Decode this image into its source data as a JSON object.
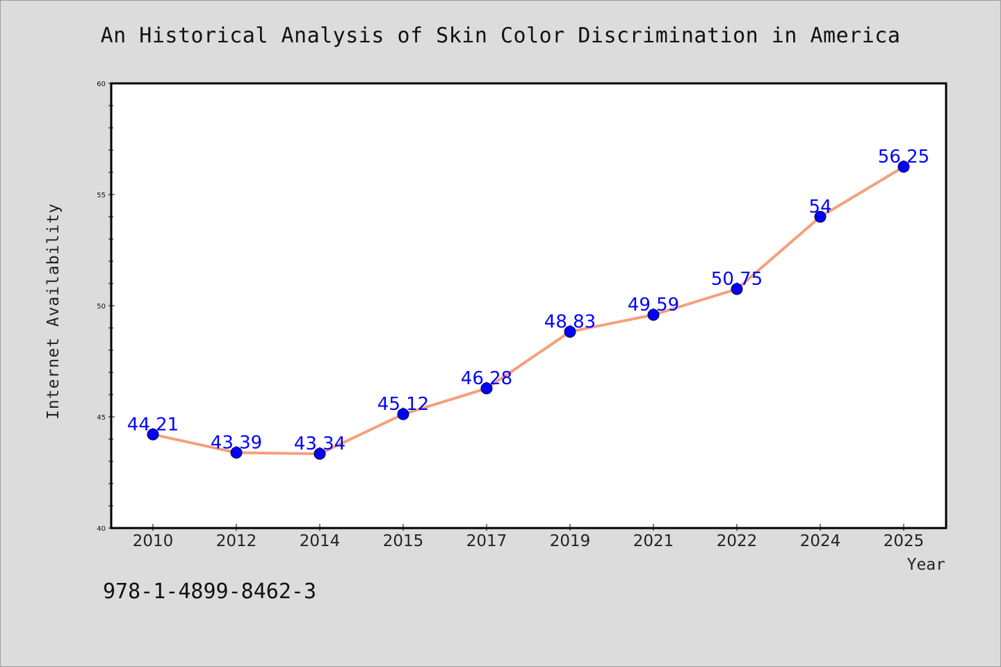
{
  "chart_data": {
    "type": "line",
    "title": "An Historical Analysis of Skin Color Discrimination in America",
    "xlabel": "Year",
    "ylabel": "Internet Availability",
    "categories": [
      "2010",
      "2012",
      "2014",
      "2015",
      "2017",
      "2019",
      "2021",
      "2022",
      "2024",
      "2025"
    ],
    "values": [
      44.21,
      43.39,
      43.34,
      45.12,
      46.28,
      48.83,
      49.59,
      50.75,
      54,
      56.25
    ],
    "data_labels": [
      "44.21",
      "43.39",
      "43.34",
      "45.12",
      "46.28",
      "48.83",
      "49.59",
      "50.75",
      "54",
      "56.25"
    ],
    "ylim": [
      40,
      60
    ],
    "yticks": [
      40,
      45,
      50,
      55,
      60
    ],
    "grid": false,
    "legend": "none",
    "colors": {
      "line": "#f4a07c",
      "marker": "#0000ff",
      "data_label": "#0000ff",
      "background": "#dcdcdc",
      "plot_area": "#ffffff"
    }
  },
  "footer": {
    "isbn": "978-1-4899-8462-3"
  }
}
